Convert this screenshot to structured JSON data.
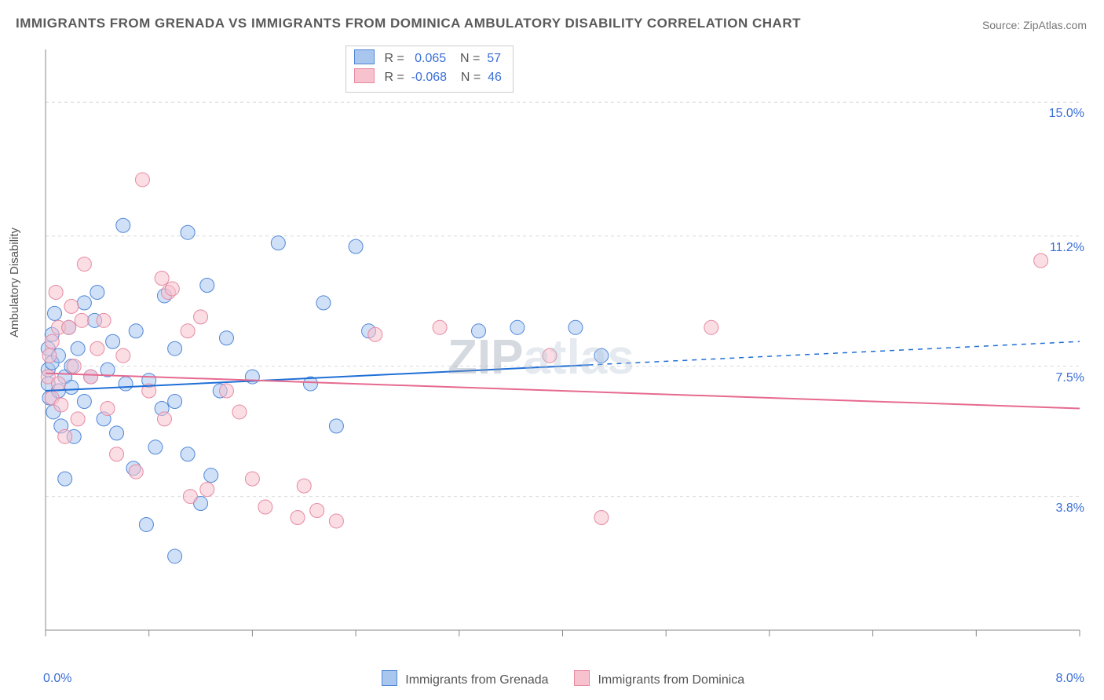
{
  "title": "IMMIGRANTS FROM GRENADA VS IMMIGRANTS FROM DOMINICA AMBULATORY DISABILITY CORRELATION CHART",
  "source": "Source: ZipAtlas.com",
  "watermark": {
    "head": "ZIP",
    "tail": "atlas"
  },
  "ylabel": "Ambulatory Disability",
  "axes": {
    "x_min": 0.0,
    "x_max": 8.0,
    "y_min": 0.0,
    "y_max": 16.5,
    "x_start_label": "0.0%",
    "x_end_label": "8.0%",
    "x_ticks": [
      0.0,
      0.8,
      1.6,
      2.4,
      3.2,
      4.0,
      4.8,
      5.6,
      6.4,
      7.2,
      8.0
    ],
    "y_gridlines": [
      3.8,
      7.5,
      11.2,
      15.0
    ],
    "y_labels": [
      "3.8%",
      "7.5%",
      "11.2%",
      "15.0%"
    ]
  },
  "colors": {
    "blue_fill": "#a9c6ef",
    "blue_stroke": "#4f86d9",
    "blue_line": "#1f6fd6",
    "pink_fill": "#f7c1cd",
    "pink_stroke": "#e68aa2",
    "pink_line": "#e66a8f",
    "grid": "#d9d9d9",
    "axis": "#888888",
    "tick_label": "#3b6fd6",
    "background": "#ffffff"
  },
  "marker": {
    "radius": 9,
    "fill_opacity": 0.55,
    "stroke_width": 1
  },
  "line_style": {
    "width": 2
  },
  "series": [
    {
      "name": "Immigrants from Grenada",
      "legend_label": "Immigrants from Grenada",
      "color_key": "blue",
      "stats": {
        "R_label": "R =",
        "R": "0.065",
        "N_label": "N =",
        "N": "57"
      },
      "trend": {
        "x1": 0.0,
        "y1": 6.8,
        "x2": 8.0,
        "y2": 8.2,
        "solid_until_x": 4.2
      },
      "points": [
        [
          0.02,
          7.4
        ],
        [
          0.02,
          8.0
        ],
        [
          0.02,
          7.0
        ],
        [
          0.03,
          6.6
        ],
        [
          0.05,
          8.4
        ],
        [
          0.05,
          7.6
        ],
        [
          0.06,
          6.2
        ],
        [
          0.07,
          9.0
        ],
        [
          0.1,
          7.8
        ],
        [
          0.1,
          6.8
        ],
        [
          0.12,
          5.8
        ],
        [
          0.15,
          4.3
        ],
        [
          0.15,
          7.2
        ],
        [
          0.18,
          8.6
        ],
        [
          0.2,
          6.9
        ],
        [
          0.2,
          7.5
        ],
        [
          0.22,
          5.5
        ],
        [
          0.25,
          8.0
        ],
        [
          0.3,
          9.3
        ],
        [
          0.3,
          6.5
        ],
        [
          0.35,
          7.2
        ],
        [
          0.38,
          8.8
        ],
        [
          0.4,
          9.6
        ],
        [
          0.45,
          6.0
        ],
        [
          0.48,
          7.4
        ],
        [
          0.52,
          8.2
        ],
        [
          0.55,
          5.6
        ],
        [
          0.6,
          11.5
        ],
        [
          0.62,
          7.0
        ],
        [
          0.68,
          4.6
        ],
        [
          0.7,
          8.5
        ],
        [
          0.78,
          3.0
        ],
        [
          0.8,
          7.1
        ],
        [
          0.85,
          5.2
        ],
        [
          0.9,
          6.3
        ],
        [
          0.92,
          9.5
        ],
        [
          1.0,
          6.5
        ],
        [
          1.0,
          8.0
        ],
        [
          1.0,
          2.1
        ],
        [
          1.1,
          11.3
        ],
        [
          1.1,
          5.0
        ],
        [
          1.2,
          3.6
        ],
        [
          1.25,
          9.8
        ],
        [
          1.28,
          4.4
        ],
        [
          1.35,
          6.8
        ],
        [
          1.4,
          8.3
        ],
        [
          1.6,
          7.2
        ],
        [
          1.8,
          11.0
        ],
        [
          2.05,
          7.0
        ],
        [
          2.15,
          9.3
        ],
        [
          2.25,
          5.8
        ],
        [
          2.4,
          10.9
        ],
        [
          2.5,
          8.5
        ],
        [
          3.35,
          8.5
        ],
        [
          3.65,
          8.6
        ],
        [
          4.1,
          8.6
        ],
        [
          4.3,
          7.8
        ]
      ]
    },
    {
      "name": "Immigrants from Dominica",
      "legend_label": "Immigrants from Dominica",
      "color_key": "pink",
      "stats": {
        "R_label": "R =",
        "R": "-0.068",
        "N_label": "N =",
        "N": "46"
      },
      "trend": {
        "x1": 0.0,
        "y1": 7.3,
        "x2": 8.0,
        "y2": 6.3,
        "solid_until_x": 8.0
      },
      "points": [
        [
          0.02,
          7.2
        ],
        [
          0.03,
          7.8
        ],
        [
          0.05,
          6.6
        ],
        [
          0.05,
          8.2
        ],
        [
          0.08,
          9.6
        ],
        [
          0.1,
          8.6
        ],
        [
          0.1,
          7.0
        ],
        [
          0.12,
          6.4
        ],
        [
          0.15,
          5.5
        ],
        [
          0.18,
          8.6
        ],
        [
          0.2,
          9.2
        ],
        [
          0.22,
          7.5
        ],
        [
          0.25,
          6.0
        ],
        [
          0.28,
          8.8
        ],
        [
          0.3,
          10.4
        ],
        [
          0.35,
          7.2
        ],
        [
          0.4,
          8.0
        ],
        [
          0.45,
          8.8
        ],
        [
          0.48,
          6.3
        ],
        [
          0.55,
          5.0
        ],
        [
          0.6,
          7.8
        ],
        [
          0.7,
          4.5
        ],
        [
          0.75,
          12.8
        ],
        [
          0.8,
          6.8
        ],
        [
          0.9,
          10.0
        ],
        [
          0.92,
          6.0
        ],
        [
          0.95,
          9.6
        ],
        [
          0.98,
          9.7
        ],
        [
          1.1,
          8.5
        ],
        [
          1.12,
          3.8
        ],
        [
          1.2,
          8.9
        ],
        [
          1.25,
          4.0
        ],
        [
          1.4,
          6.8
        ],
        [
          1.5,
          6.2
        ],
        [
          1.6,
          4.3
        ],
        [
          1.7,
          3.5
        ],
        [
          1.95,
          3.2
        ],
        [
          2.0,
          4.1
        ],
        [
          2.1,
          3.4
        ],
        [
          2.25,
          3.1
        ],
        [
          2.55,
          8.4
        ],
        [
          3.05,
          8.6
        ],
        [
          3.9,
          7.8
        ],
        [
          4.3,
          3.2
        ],
        [
          5.15,
          8.6
        ],
        [
          7.7,
          10.5
        ]
      ]
    }
  ]
}
